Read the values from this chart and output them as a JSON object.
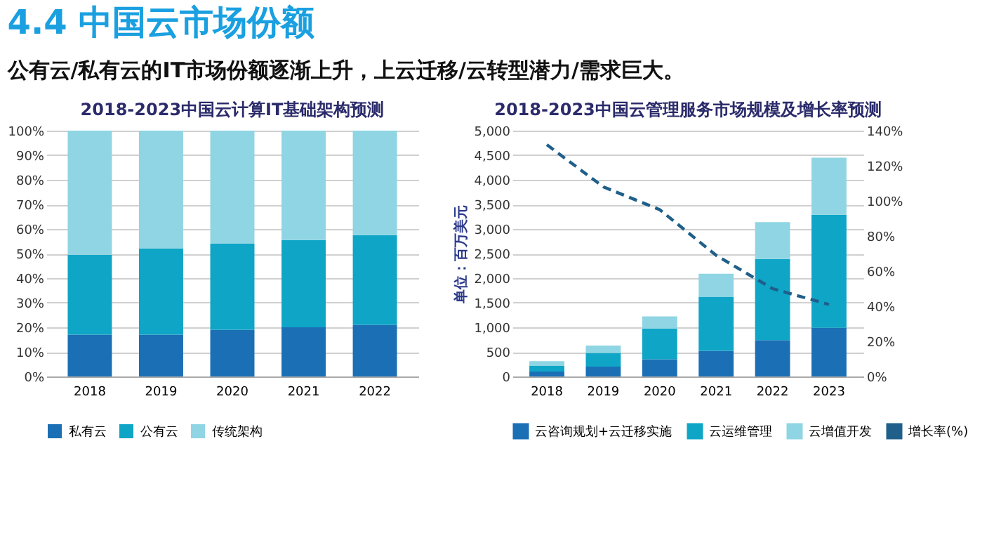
{
  "chart_data": [
    {
      "type": "bar",
      "title": "2018-2023中国云计算IT基础架构预测",
      "annotations": [
        "4.4 中国云市场份额",
        "公有云/私有云的IT市场份额逐渐上升，上云迁移/云转型潜力/需求巨大。"
      ],
      "categories": [
        "2018",
        "2019",
        "2020",
        "2021",
        "2022"
      ],
      "stacked": true,
      "series": [
        {
          "name": "私有云",
          "color": "#1a6fb5",
          "values": [
            17,
            17,
            19,
            20,
            21
          ]
        },
        {
          "name": "公有云",
          "color": "#0ea5c6",
          "values": [
            32.5,
            35,
            35,
            35.5,
            36.5
          ]
        },
        {
          "name": "传统架构",
          "color": "#8fd5e3",
          "values": [
            50.5,
            48,
            46,
            44.5,
            42.5
          ]
        }
      ],
      "ylim": [
        0,
        100
      ],
      "yticks": [
        {
          "value": 0,
          "label": "0%"
        },
        {
          "value": 10,
          "label": "10%"
        },
        {
          "value": 20,
          "label": "20%"
        },
        {
          "value": 30,
          "label": "30%"
        },
        {
          "value": 40,
          "label": "40%"
        },
        {
          "value": 50,
          "label": "50%"
        },
        {
          "value": 60,
          "label": "60%"
        },
        {
          "value": 70,
          "label": "70%"
        },
        {
          "value": 80,
          "label": "80%"
        },
        {
          "value": 90,
          "label": "90%"
        },
        {
          "value": 100,
          "label": "100%"
        }
      ],
      "grid": "y",
      "legend": "bottom"
    },
    {
      "type": "bar",
      "title": "2018-2023中国云管理服务市场规模及增长率预测",
      "ylabel": "单位：百万美元",
      "categories": [
        "2018",
        "2019",
        "2020",
        "2021",
        "2022",
        "2023"
      ],
      "stacked": true,
      "series": [
        {
          "name": "云咨询规划+云迁移实施",
          "color": "#1a6fb5",
          "values": [
            100,
            200,
            350,
            520,
            740,
            990
          ]
        },
        {
          "name": "云运维管理",
          "color": "#0ea5c6",
          "values": [
            120,
            280,
            620,
            1100,
            1650,
            2300
          ]
        },
        {
          "name": "云增值开发",
          "color": "#8fd5e3",
          "values": [
            90,
            150,
            250,
            470,
            750,
            1160
          ]
        },
        {
          "name": "增长率(%)",
          "type": "line",
          "axis": "y2",
          "color": "#1f5f8a",
          "line_style": "dashed",
          "values": [
            132,
            108,
            95,
            69,
            50,
            41
          ]
        }
      ],
      "ylim": [
        0,
        5000
      ],
      "yticks": [
        {
          "value": 0,
          "label": "0"
        },
        {
          "value": 500,
          "label": "500"
        },
        {
          "value": 1000,
          "label": "1,000"
        },
        {
          "value": 1500,
          "label": "1,500"
        },
        {
          "value": 2000,
          "label": "2,000"
        },
        {
          "value": 2500,
          "label": "2,500"
        },
        {
          "value": 3000,
          "label": "3,000"
        },
        {
          "value": 3500,
          "label": "3,500"
        },
        {
          "value": 4000,
          "label": "4,000"
        },
        {
          "value": 4500,
          "label": "4,500"
        },
        {
          "value": 5000,
          "label": "5,000"
        }
      ],
      "y2lim": [
        0,
        140
      ],
      "y2ticks": [
        {
          "value": 0,
          "label": "0%"
        },
        {
          "value": 20,
          "label": "20%"
        },
        {
          "value": 40,
          "label": "40%"
        },
        {
          "value": 60,
          "label": "60%"
        },
        {
          "value": 80,
          "label": "80%"
        },
        {
          "value": 100,
          "label": "100%"
        },
        {
          "value": 120,
          "label": "120%"
        },
        {
          "value": 140,
          "label": "140%"
        }
      ],
      "grid": "y",
      "legend": "bottom"
    }
  ]
}
